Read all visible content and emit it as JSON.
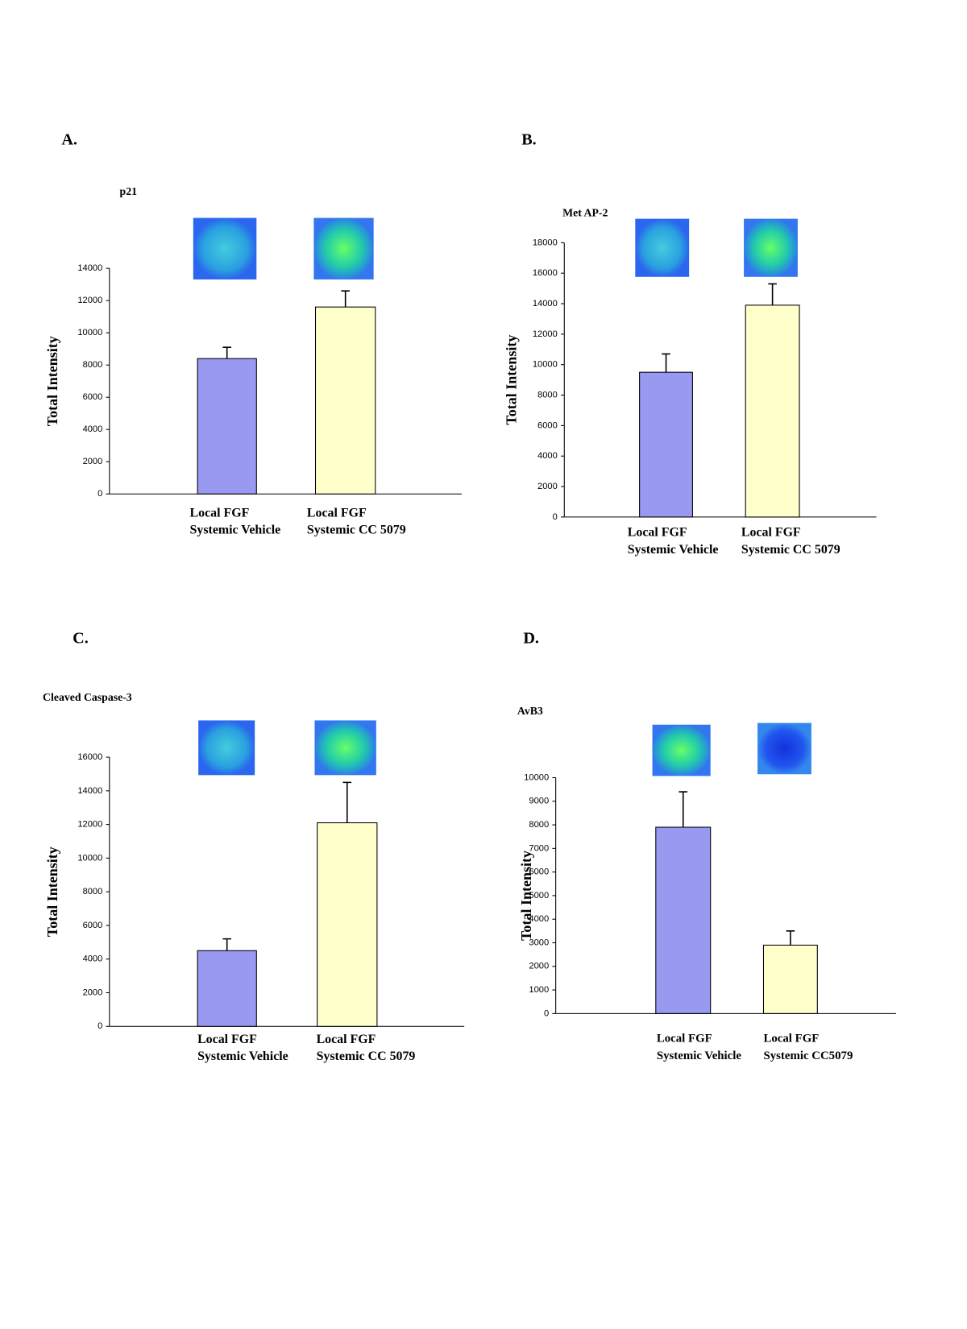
{
  "chart_data": [
    {
      "type": "bar",
      "label": "A.",
      "title": "p21",
      "ylabel": "Total Intensity",
      "categories": [
        [
          "Local FGF",
          "Systemic Vehicle"
        ],
        [
          "Local FGF",
          "Systemic CC 5079"
        ]
      ],
      "values": [
        8400,
        11600
      ],
      "errors": [
        700,
        1000
      ],
      "colors": [
        "#9999f2",
        "#ffffcc"
      ],
      "ylim": [
        0,
        14000
      ],
      "yticks": [
        0,
        2000,
        4000,
        6000,
        8000,
        10000,
        12000,
        14000
      ]
    },
    {
      "type": "bar",
      "label": "B.",
      "title": "Met AP-2",
      "ylabel": "Total Intensity",
      "categories": [
        [
          "Local FGF",
          "Systemic Vehicle"
        ],
        [
          "Local FGF",
          "Systemic CC 5079"
        ]
      ],
      "values": [
        9500,
        13900
      ],
      "errors": [
        1200,
        1400
      ],
      "colors": [
        "#9999f2",
        "#ffffcc"
      ],
      "ylim": [
        0,
        18000
      ],
      "yticks": [
        0,
        2000,
        4000,
        6000,
        8000,
        10000,
        12000,
        14000,
        16000,
        18000
      ]
    },
    {
      "type": "bar",
      "label": "C.",
      "title": "Cleaved Caspase-3",
      "ylabel": "Total Intensity",
      "categories": [
        [
          "Local FGF",
          "Systemic Vehicle"
        ],
        [
          "Local FGF",
          "Systemic CC 5079"
        ]
      ],
      "values": [
        4500,
        12100
      ],
      "errors": [
        700,
        2400
      ],
      "colors": [
        "#9999f2",
        "#ffffcc"
      ],
      "ylim": [
        0,
        16000
      ],
      "yticks": [
        0,
        2000,
        4000,
        6000,
        8000,
        10000,
        12000,
        14000,
        16000
      ]
    },
    {
      "type": "bar",
      "label": "D.",
      "title": "AvB3",
      "ylabel": "Total Intensity",
      "categories": [
        [
          "Local FGF",
          "Systemic Vehicle"
        ],
        [
          "Local FGF",
          "Systemic CC5079"
        ]
      ],
      "values": [
        7900,
        2900
      ],
      "errors": [
        1500,
        600
      ],
      "colors": [
        "#9999f2",
        "#ffffcc"
      ],
      "ylim": [
        0,
        10000
      ],
      "yticks": [
        0,
        1000,
        2000,
        3000,
        4000,
        5000,
        6000,
        7000,
        8000,
        9000,
        10000
      ]
    }
  ]
}
